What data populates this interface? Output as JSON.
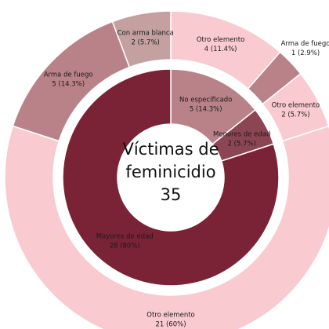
{
  "chart_data": {
    "type": "sunburst",
    "title": "Víctimas de feminicidio",
    "total": 35,
    "rings": [
      {
        "labels": [
          "No especificado",
          "Menores de edad",
          "Mayores de edad"
        ],
        "values": [
          5,
          2,
          28
        ],
        "value_labels": [
          "5 (14.3%)",
          "2 (5.7%)",
          "28 (80%)"
        ],
        "colors": [
          "#b98288",
          "#8c4653",
          "#7a2336"
        ]
      },
      {
        "labels": [
          "Otro elemento",
          "Arma de fuego",
          "Otro elemento",
          "Otro elemento",
          "Arma de fuego",
          "Con arma blanca"
        ],
        "values": [
          4,
          1,
          2,
          21,
          5,
          2
        ],
        "value_labels": [
          "4 (11.4%)",
          "1 (2.9%)",
          "2 (5.7%)",
          "21 (60%)",
          "5 (14.3%)",
          "2 (5.7%)"
        ],
        "colors": [
          "#f9cad0",
          "#b98288",
          "#f9cad0",
          "#f9cad0",
          "#b98288",
          "#c4a0a1"
        ]
      }
    ]
  }
}
